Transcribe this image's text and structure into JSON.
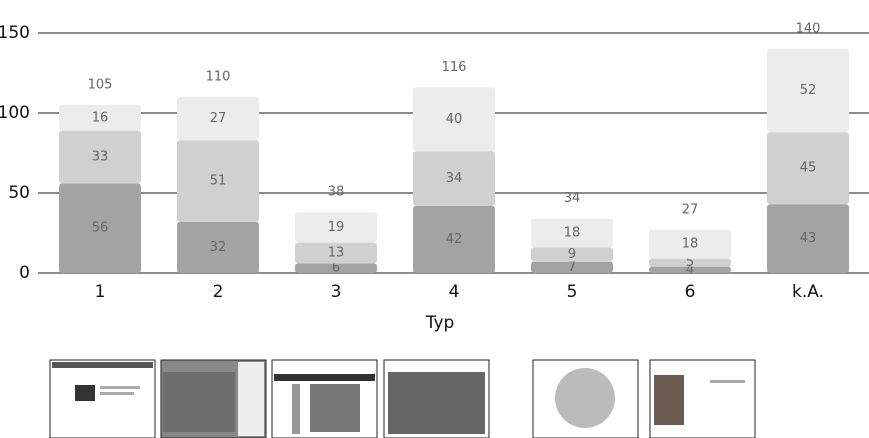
{
  "chart_data": {
    "type": "stacked-bar",
    "categories": [
      "1",
      "2",
      "3",
      "4",
      "5",
      "6",
      "k.A."
    ],
    "x_label": "Typ",
    "series": [
      {
        "color": "#a3a3a3",
        "values": [
          56,
          32,
          6,
          42,
          7,
          4,
          43
        ]
      },
      {
        "color": "#d0d0d0",
        "values": [
          33,
          51,
          13,
          34,
          9,
          5,
          45
        ]
      },
      {
        "color": "#ececec",
        "values": [
          16,
          27,
          19,
          40,
          18,
          18,
          52
        ]
      }
    ],
    "totals": [
      105,
      110,
      38,
      116,
      34,
      27,
      140
    ],
    "ylim": [
      0,
      150
    ],
    "yticks": [
      0,
      50,
      100,
      150
    ],
    "grid": true
  }
}
